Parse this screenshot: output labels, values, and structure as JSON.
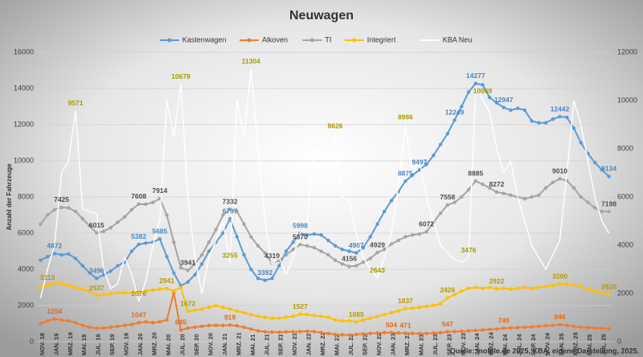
{
  "chart_data": {
    "type": "line",
    "title": "Neuwagen",
    "y_label": "Anzahl der Fahrzeuge",
    "source": "Quelle: mobile.de 2025, KBA, eigene Darstellung, 2025.",
    "legend": "top",
    "grid": true,
    "categories": [
      "NOV. 18",
      null,
      "JAN. 19",
      null,
      "MRZ. 19",
      null,
      "MAI. 19",
      null,
      "JUL. 19",
      null,
      "SEP. 19",
      null,
      "NOV. 19",
      null,
      "JAN. 20",
      null,
      "MRZ. 20",
      null,
      "MAI. 20",
      null,
      "JUL. 20",
      null,
      "SEP. 20",
      null,
      "NOV. 20",
      null,
      "JAN. 21",
      null,
      "MRZ. 21",
      null,
      "MAI. 21",
      null,
      "JUL. 21",
      null,
      "SEP. 21",
      null,
      "NOV. 21",
      null,
      "JAN. 22",
      null,
      "MRZ. 22",
      null,
      "MAI. 22",
      null,
      "JUL. 22",
      null,
      "SEP. 22",
      null,
      "NOV. 22",
      null,
      "JAN. 23",
      null,
      "MRZ. 23",
      null,
      "MAI. 23",
      null,
      "JUL. 23",
      null,
      "SEP. 23",
      null,
      "NOV. 23",
      null,
      "JAN. 24",
      null,
      "MRZ. 24",
      null,
      "MAI. 24",
      null,
      "JUL. 24",
      null,
      "SEP. 24",
      null,
      "NOV. 24",
      null,
      "JAN. 25",
      null,
      "MRZ. 25",
      null,
      "MAI. 25",
      null,
      "JUL. 25",
      null
    ],
    "ylim": [
      0,
      16000
    ],
    "yticks": [
      0,
      2000,
      4000,
      6000,
      8000,
      10000,
      12000,
      14000,
      16000
    ],
    "y2lim": [
      0,
      12000
    ],
    "y2ticks": [
      0,
      2000,
      4000,
      6000,
      8000,
      10000,
      12000
    ],
    "series": [
      {
        "name": "Kastenwagen",
        "color": "#5b9bd5",
        "label_color": "#4a86c5",
        "marker": true,
        "axis": "y",
        "values": [
          4500,
          4700,
          4872,
          4800,
          4850,
          4600,
          4200,
          3800,
          3496,
          3700,
          3900,
          4200,
          4400,
          5000,
          5382,
          5450,
          5500,
          5685,
          4700,
          3800,
          3100,
          3300,
          3700,
          4300,
          5000,
          5500,
          6000,
          6797,
          5800,
          4800,
          4000,
          3500,
          3392,
          3500,
          4200,
          5000,
          5500,
          5998,
          5900,
          5950,
          5900,
          5600,
          5300,
          5100,
          5000,
          4907,
          5200,
          5800,
          6500,
          7200,
          7800,
          8300,
          8875,
          9200,
          9497,
          9800,
          10300,
          10900,
          11500,
          12249,
          13000,
          13800,
          14277,
          14200,
          13500,
          13200,
          12947,
          12800,
          12900,
          12800,
          12200,
          12100,
          12100,
          12300,
          12442,
          12400,
          11800,
          11000,
          10400,
          9900,
          9500,
          9134
        ],
        "value_labels": [
          null,
          null,
          "4872",
          null,
          null,
          null,
          null,
          null,
          "3496",
          null,
          null,
          null,
          null,
          null,
          "5382",
          null,
          null,
          "5685",
          null,
          null,
          null,
          null,
          null,
          null,
          null,
          null,
          null,
          "6797",
          null,
          null,
          null,
          null,
          "3392",
          null,
          null,
          null,
          null,
          "5998",
          null,
          null,
          null,
          null,
          null,
          null,
          null,
          "4907",
          null,
          null,
          null,
          null,
          null,
          null,
          "8875",
          null,
          "9497",
          null,
          null,
          null,
          null,
          "12249",
          null,
          null,
          "14277",
          null,
          null,
          null,
          "12947",
          null,
          null,
          null,
          null,
          null,
          null,
          null,
          "12442",
          null,
          null,
          null,
          null,
          null,
          null,
          "9134"
        ]
      },
      {
        "name": "Alkoven",
        "color": "#ed7d31",
        "label_color": "#e06a1a",
        "marker": true,
        "axis": "y",
        "values": [
          1000,
          1150,
          1254,
          1200,
          1150,
          1050,
          900,
          800,
          750,
          750,
          800,
          850,
          900,
          950,
          1047,
          1100,
          1050,
          1100,
          1200,
          2700,
          645,
          750,
          800,
          850,
          900,
          900,
          900,
          919,
          880,
          800,
          700,
          600,
          550,
          530,
          520,
          540,
          550,
          560,
          580,
          560,
          500,
          450,
          400,
          380,
          370,
          400,
          430,
          460,
          480,
          500,
          504,
          480,
          471,
          460,
          450,
          460,
          480,
          500,
          547,
          560,
          580,
          600,
          620,
          650,
          680,
          700,
          749,
          760,
          780,
          800,
          820,
          850,
          880,
          900,
          946,
          900,
          850,
          800,
          780,
          760,
          740,
          720
        ],
        "value_labels": [
          null,
          null,
          "1254",
          null,
          null,
          null,
          null,
          null,
          null,
          null,
          null,
          null,
          null,
          null,
          "1047",
          null,
          null,
          null,
          null,
          null,
          "645",
          null,
          null,
          null,
          null,
          null,
          null,
          "919",
          null,
          null,
          null,
          null,
          null,
          null,
          null,
          null,
          null,
          null,
          null,
          null,
          null,
          null,
          null,
          null,
          null,
          null,
          null,
          null,
          null,
          null,
          "504",
          null,
          "471",
          null,
          null,
          null,
          null,
          null,
          "547",
          null,
          null,
          null,
          null,
          null,
          null,
          null,
          "749",
          null,
          null,
          null,
          null,
          null,
          null,
          null,
          "946",
          null,
          null,
          null,
          null,
          null,
          null,
          null
        ]
      },
      {
        "name": "TI",
        "color": "#a5a5a5",
        "label_color": "#4d4d4d",
        "marker": true,
        "axis": "y",
        "values": [
          6500,
          7000,
          7300,
          7425,
          7400,
          7200,
          6800,
          6400,
          6015,
          6100,
          6300,
          6600,
          6900,
          7300,
          7608,
          7600,
          7700,
          7914,
          7000,
          5500,
          4100,
          3941,
          4300,
          4800,
          5500,
          6200,
          7000,
          7332,
          7200,
          6500,
          5800,
          5300,
          4900,
          4319,
          4500,
          4800,
          5100,
          5370,
          5300,
          5200,
          5000,
          4800,
          4500,
          4300,
          4156,
          4200,
          4400,
          4600,
          4929,
          5100,
          5400,
          5600,
          5800,
          5900,
          5950,
          6072,
          6600,
          7100,
          7558,
          7700,
          8000,
          8400,
          8885,
          8700,
          8500,
          8272,
          8200,
          8100,
          8000,
          7900,
          8000,
          8100,
          8500,
          8800,
          9010,
          8900,
          8500,
          8000,
          7700,
          7400,
          7200,
          7198
        ],
        "value_labels": [
          null,
          null,
          null,
          "7425",
          null,
          null,
          null,
          null,
          "6015",
          null,
          null,
          null,
          null,
          null,
          "7608",
          null,
          null,
          "7914",
          null,
          null,
          null,
          "3941",
          null,
          null,
          null,
          null,
          null,
          "7332",
          null,
          null,
          null,
          null,
          null,
          "4319",
          null,
          null,
          null,
          "5370",
          null,
          null,
          null,
          null,
          null,
          null,
          "4156",
          null,
          null,
          null,
          "4929",
          null,
          null,
          null,
          null,
          null,
          null,
          "6072",
          null,
          null,
          "7558",
          null,
          null,
          null,
          "8885",
          null,
          null,
          "8272",
          null,
          null,
          null,
          null,
          null,
          null,
          null,
          null,
          "9010",
          null,
          null,
          null,
          null,
          null,
          null,
          "7198"
        ]
      },
      {
        "name": "Integriert",
        "color": "#ffc000",
        "label_color": "#b39a00",
        "marker": true,
        "axis": "y",
        "values": [
          3000,
          3113,
          3250,
          3200,
          3100,
          3000,
          2900,
          2800,
          2537,
          2600,
          2650,
          2700,
          2700,
          2700,
          2750,
          2800,
          2850,
          2900,
          2941,
          2800,
          3000,
          1672,
          1750,
          1800,
          1900,
          2000,
          1900,
          1800,
          1700,
          1600,
          1500,
          1400,
          1350,
          1300,
          1300,
          1350,
          1400,
          1527,
          1500,
          1450,
          1400,
          1350,
          1200,
          1150,
          1150,
          1085,
          1200,
          1300,
          1400,
          1500,
          1600,
          1700,
          1837,
          1850,
          1900,
          1950,
          2000,
          2100,
          2426,
          2600,
          2800,
          2950,
          3000,
          2950,
          3000,
          2922,
          2950,
          2900,
          2950,
          3000,
          2950,
          3000,
          3050,
          3100,
          3200,
          3150,
          3150,
          3050,
          2900,
          2800,
          2700,
          2620
        ],
        "value_labels": [
          null,
          "3113",
          null,
          null,
          null,
          null,
          null,
          null,
          "2537",
          null,
          null,
          null,
          null,
          null,
          null,
          null,
          null,
          null,
          "2941",
          null,
          null,
          "1672",
          null,
          null,
          null,
          null,
          null,
          null,
          null,
          null,
          null,
          null,
          null,
          null,
          null,
          null,
          null,
          "1527",
          null,
          null,
          null,
          null,
          null,
          null,
          null,
          "1085",
          null,
          null,
          null,
          null,
          null,
          null,
          "1837",
          null,
          null,
          null,
          null,
          null,
          "2426",
          null,
          null,
          null,
          null,
          null,
          null,
          "2922",
          null,
          null,
          null,
          null,
          null,
          null,
          null,
          null,
          "3200",
          null,
          null,
          null,
          null,
          null,
          null,
          "2620"
        ]
      },
      {
        "name": "KBA Neu",
        "color": "#ffffff",
        "label_color": "#a89a00",
        "marker": false,
        "axis": "y2",
        "values": [
          1800,
          3000,
          4000,
          7000,
          7500,
          9571,
          5500,
          5400,
          5300,
          3000,
          2200,
          2400,
          3500,
          2800,
          1676,
          2500,
          4000,
          5000,
          10000,
          8500,
          10678,
          6000,
          3500,
          2000,
          3500,
          4200,
          5000,
          3255,
          10000,
          8500,
          11304,
          8000,
          5000,
          3200,
          3500,
          2800,
          3500,
          4500,
          5000,
          8000,
          7800,
          7800,
          8626,
          6000,
          5800,
          4500,
          3500,
          3000,
          2643,
          3500,
          4500,
          6500,
          8986,
          7000,
          7500,
          6000,
          5000,
          4000,
          3700,
          3400,
          3300,
          3476,
          10500,
          10069,
          9500,
          8000,
          7000,
          7500,
          6000,
          5000,
          4000,
          3500,
          3000,
          3600,
          4200,
          7000,
          10000,
          9000,
          7500,
          6000,
          5000,
          4500
        ],
        "value_labels": [
          null,
          null,
          null,
          null,
          null,
          "9571",
          null,
          null,
          null,
          null,
          null,
          null,
          null,
          null,
          "1676",
          null,
          null,
          null,
          null,
          null,
          "10678",
          null,
          null,
          null,
          null,
          null,
          null,
          "3255",
          null,
          null,
          "11304",
          null,
          null,
          null,
          null,
          null,
          null,
          null,
          null,
          null,
          null,
          null,
          "8626",
          null,
          null,
          null,
          null,
          null,
          "2643",
          null,
          null,
          null,
          "8986",
          null,
          null,
          null,
          null,
          null,
          null,
          null,
          null,
          "3476",
          null,
          "10069",
          null,
          null,
          null,
          null,
          null,
          null,
          null,
          null,
          null,
          null,
          null,
          null,
          null,
          null,
          null,
          null,
          null,
          null
        ]
      }
    ]
  }
}
